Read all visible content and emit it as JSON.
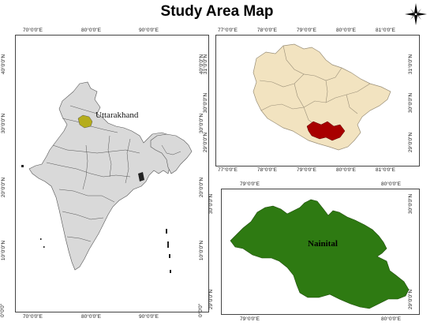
{
  "title": "Study Area Map",
  "north_arrow": {
    "icon": "compass-rose-icon"
  },
  "india_panel": {
    "x_ticks": [
      "70°0'0\"E",
      "80°0'0\"E",
      "90°0'0\"E"
    ],
    "y_ticks": [
      "40°0'0\"N",
      "30°0'0\"N",
      "20°0'0\"N",
      "10°0'0\"N",
      "0°0'0\""
    ],
    "highlight_label": "Uttarakhand",
    "colors": {
      "land": "#d9d9d9",
      "border": "#555555",
      "highlight": "#b5ad1c"
    }
  },
  "uttarakhand_panel": {
    "x_ticks_top": [
      "77°0'0\"E",
      "78°0'0\"E",
      "79°0'0\"E",
      "80°0'0\"E",
      "81°0'0\"E"
    ],
    "x_ticks_bottom": [
      "77°0'0\"E",
      "78°0'0\"E",
      "79°0'0\"E",
      "80°0'0\"E",
      "81°0'0\"E"
    ],
    "y_ticks_left": [
      "31°0'0\"N",
      "30°0'0\"N",
      "29°0'0\"N"
    ],
    "y_ticks_right": [
      "31°0'0\"N",
      "30°0'0\"N",
      "29°0'0\"N"
    ],
    "colors": {
      "land": "#f2e3c0",
      "border": "#9a8f78",
      "highlight": "#a80000"
    }
  },
  "nainital_panel": {
    "x_ticks_top": [
      "79°0'0\"E",
      "80°0'0\"E"
    ],
    "x_ticks_bottom": [
      "79°0'0\"E",
      "80°0'0\"E"
    ],
    "y_ticks_left": [
      "30°0'0\"N",
      "29°0'0\"N"
    ],
    "y_ticks_right": [
      "30°0'0\"N",
      "29°0'0\"N"
    ],
    "label": "Nainital",
    "colors": {
      "fill": "#2e7a12",
      "border": "#1f4d0c"
    }
  }
}
